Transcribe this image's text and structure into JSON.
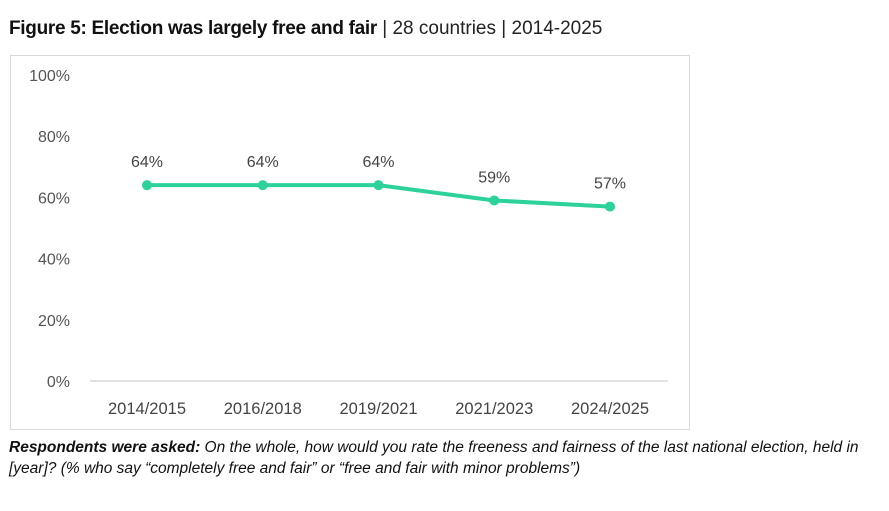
{
  "title": {
    "bold": "Figure 5: Election was largely free and fair",
    "sep1": " | ",
    "countries": "28 countries",
    "sep2": " | ",
    "period": "2014-2025"
  },
  "note": {
    "label": "Respondents were asked:",
    "text": " On the whole, how would you rate the freeness and fairness of the last national election, held in [year]? (% who say “completely free and fair” or “free and fair with minor problems”)"
  },
  "chart_data": {
    "type": "line",
    "title": "Figure 5: Election was largely free and fair",
    "categories": [
      "2014/2015",
      "2016/2018",
      "2019/2021",
      "2021/2023",
      "2024/2025"
    ],
    "series": [
      {
        "name": "Election was largely free and fair",
        "values": [
          64,
          64,
          64,
          59,
          57
        ],
        "labels": [
          "64%",
          "64%",
          "64%",
          "59%",
          "57%"
        ],
        "color": "#2dd29b"
      }
    ],
    "yticks": [
      "0%",
      "20%",
      "40%",
      "60%",
      "80%",
      "100%"
    ],
    "ylim": [
      0,
      100
    ],
    "grid": false,
    "xlabel": "",
    "ylabel": ""
  }
}
